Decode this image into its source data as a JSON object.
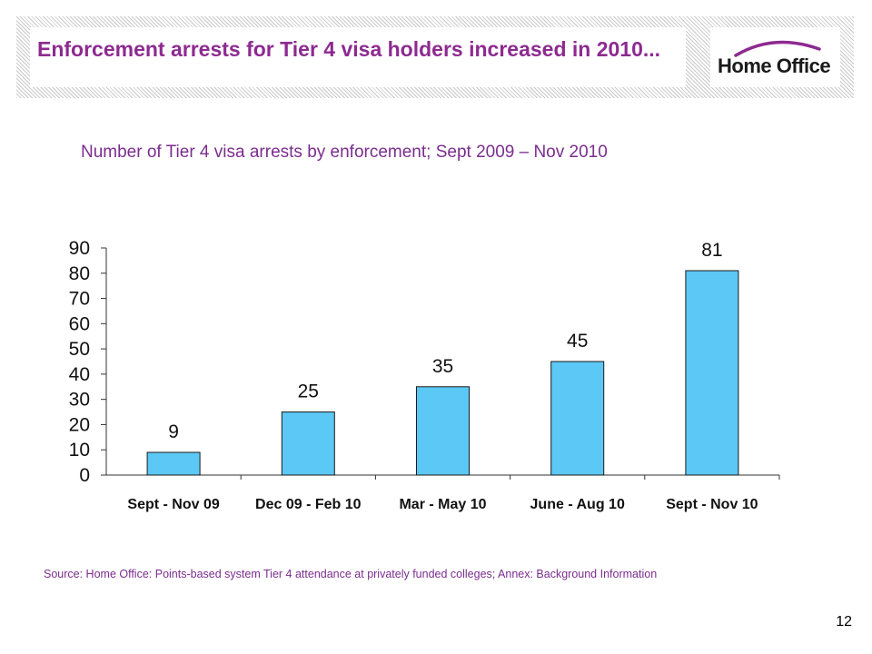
{
  "slide": {
    "title": "Enforcement arrests for Tier 4 visa holders increased in 2010...",
    "logo_text": "Home Office",
    "subtitle": "Number of Tier 4 visa arrests by enforcement; Sept 2009 – Nov 2010",
    "source": "Source: Home Office: Points-based system Tier 4 attendance at privately funded colleges; Annex: Background Information",
    "page_number": "12"
  },
  "colors": {
    "title": "#8d2a90",
    "bar_fill": "#5bc8f5",
    "bar_stroke": "#1a1a1a",
    "subtitle": "#7b2d8e"
  },
  "chart_data": {
    "type": "bar",
    "title": "Number of Tier 4 visa arrests by enforcement; Sept 2009 – Nov 2010",
    "categories": [
      "Sept - Nov 09",
      "Dec 09 - Feb 10",
      "Mar - May 10",
      "June - Aug 10",
      "Sept - Nov 10"
    ],
    "values": [
      9,
      25,
      35,
      45,
      81
    ],
    "data_labels": [
      "9",
      "25",
      "35",
      "45",
      "81"
    ],
    "yticks": [
      "0",
      "10",
      "20",
      "30",
      "40",
      "50",
      "60",
      "70",
      "80",
      "90"
    ],
    "ylim": [
      0,
      90
    ],
    "xlabel": "",
    "ylabel": "",
    "grid": false,
    "legend": "none"
  }
}
